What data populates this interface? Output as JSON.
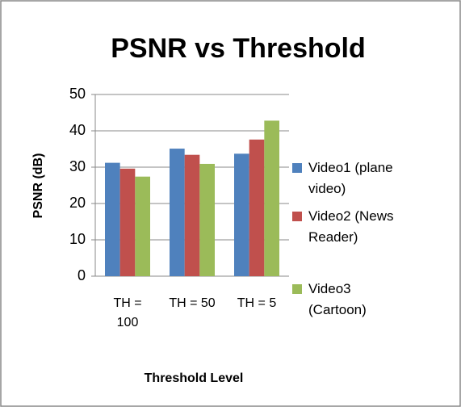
{
  "chart_data": {
    "type": "bar",
    "title": "PSNR  vs Threshold",
    "y_label": "PSNR (dB)",
    "x_label": "Threshold Level",
    "categories": [
      "TH = 100",
      "TH = 50",
      "TH = 5"
    ],
    "series": [
      {
        "name": "Video1 (plane video)",
        "color": "#4f81bd",
        "values": [
          31.2,
          35.1,
          33.7
        ]
      },
      {
        "name": "Video2 (News Reader)",
        "color": "#c0504d",
        "values": [
          29.6,
          33.4,
          37.6
        ]
      },
      {
        "name": "Video3 (Cartoon)",
        "color": "#9bbb59",
        "values": [
          27.4,
          30.9,
          42.8
        ]
      }
    ],
    "ylim": [
      0,
      50
    ],
    "yticks": [
      0,
      10,
      20,
      30,
      40,
      50
    ],
    "grid": true,
    "legend": "right"
  }
}
